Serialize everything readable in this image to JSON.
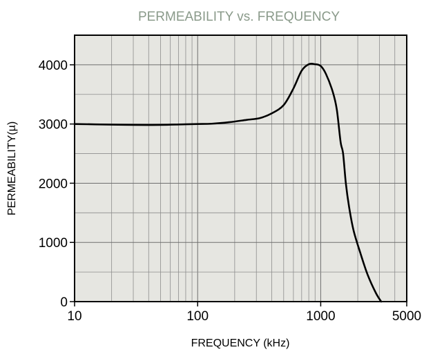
{
  "chart_data": {
    "type": "line",
    "title": "PERMEABILITY vs. FREQUENCY",
    "xlabel": "FREQUENCY (kHz)",
    "ylabel": "PERMEABILITY(µ)",
    "x_scale": "log",
    "xlim": [
      10,
      5000
    ],
    "ylim": [
      0,
      4500
    ],
    "x_ticks": [
      10,
      100,
      1000,
      5000
    ],
    "x_tick_labels": [
      "10",
      "100",
      "1000",
      "5000"
    ],
    "y_ticks": [
      0,
      1000,
      2000,
      3000,
      4000
    ],
    "y_tick_labels": [
      "0",
      "1000",
      "2000",
      "3000",
      "4000"
    ],
    "grid": true,
    "colors": {
      "line": "#000000",
      "plot_background": "#e6e6e1",
      "title": "#8a9a8a"
    },
    "series": [
      {
        "x": [
          10,
          20,
          30,
          50,
          80,
          100,
          130,
          180,
          250,
          320,
          400,
          500,
          600,
          700,
          800,
          900,
          1000,
          1100,
          1250,
          1350,
          1450,
          1520,
          1600,
          1700,
          1850,
          2100,
          2400,
          2800,
          3100
        ],
        "y": [
          3000,
          2990,
          2985,
          2985,
          2995,
          3000,
          3005,
          3030,
          3070,
          3100,
          3180,
          3320,
          3600,
          3900,
          4010,
          4010,
          3980,
          3850,
          3550,
          3250,
          2700,
          2500,
          2000,
          1600,
          1200,
          820,
          460,
          150,
          0
        ]
      }
    ]
  }
}
